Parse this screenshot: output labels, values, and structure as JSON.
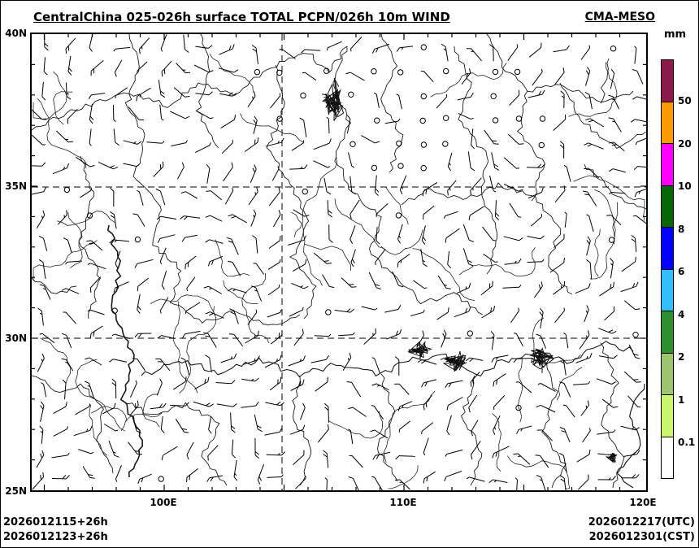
{
  "header": {
    "title": "CentralChina 025-026h surface TOTAL PCPN/026h 10m WIND",
    "model": "CMA-MESO"
  },
  "axes": {
    "lat_labels": [
      "40N",
      "35N",
      "30N",
      "25N"
    ],
    "lon_labels": [
      "100E",
      "110E",
      "120E"
    ]
  },
  "colorbar": {
    "unit": "mm",
    "segments": [
      {
        "color": "#8B1A4B",
        "label": "50"
      },
      {
        "color": "#FF9900",
        "label": "20"
      },
      {
        "color": "#FF00FF",
        "label": "10"
      },
      {
        "color": "#076607",
        "label": "8"
      },
      {
        "color": "#0000FF",
        "label": "6"
      },
      {
        "color": "#33BFFF",
        "label": "4"
      },
      {
        "color": "#2E8F2E",
        "label": "2"
      },
      {
        "color": "#9FC46E",
        "label": "1"
      },
      {
        "color": "#CBF76E",
        "label": "0.1"
      },
      {
        "color": "#FFFFFF",
        "label": ""
      }
    ]
  },
  "footer": {
    "left_line1": "2026012115+26h",
    "left_line2": "2026012123+26h",
    "right_line1": "2026012217(UTC)",
    "right_line2": "2026012301(CST)"
  }
}
